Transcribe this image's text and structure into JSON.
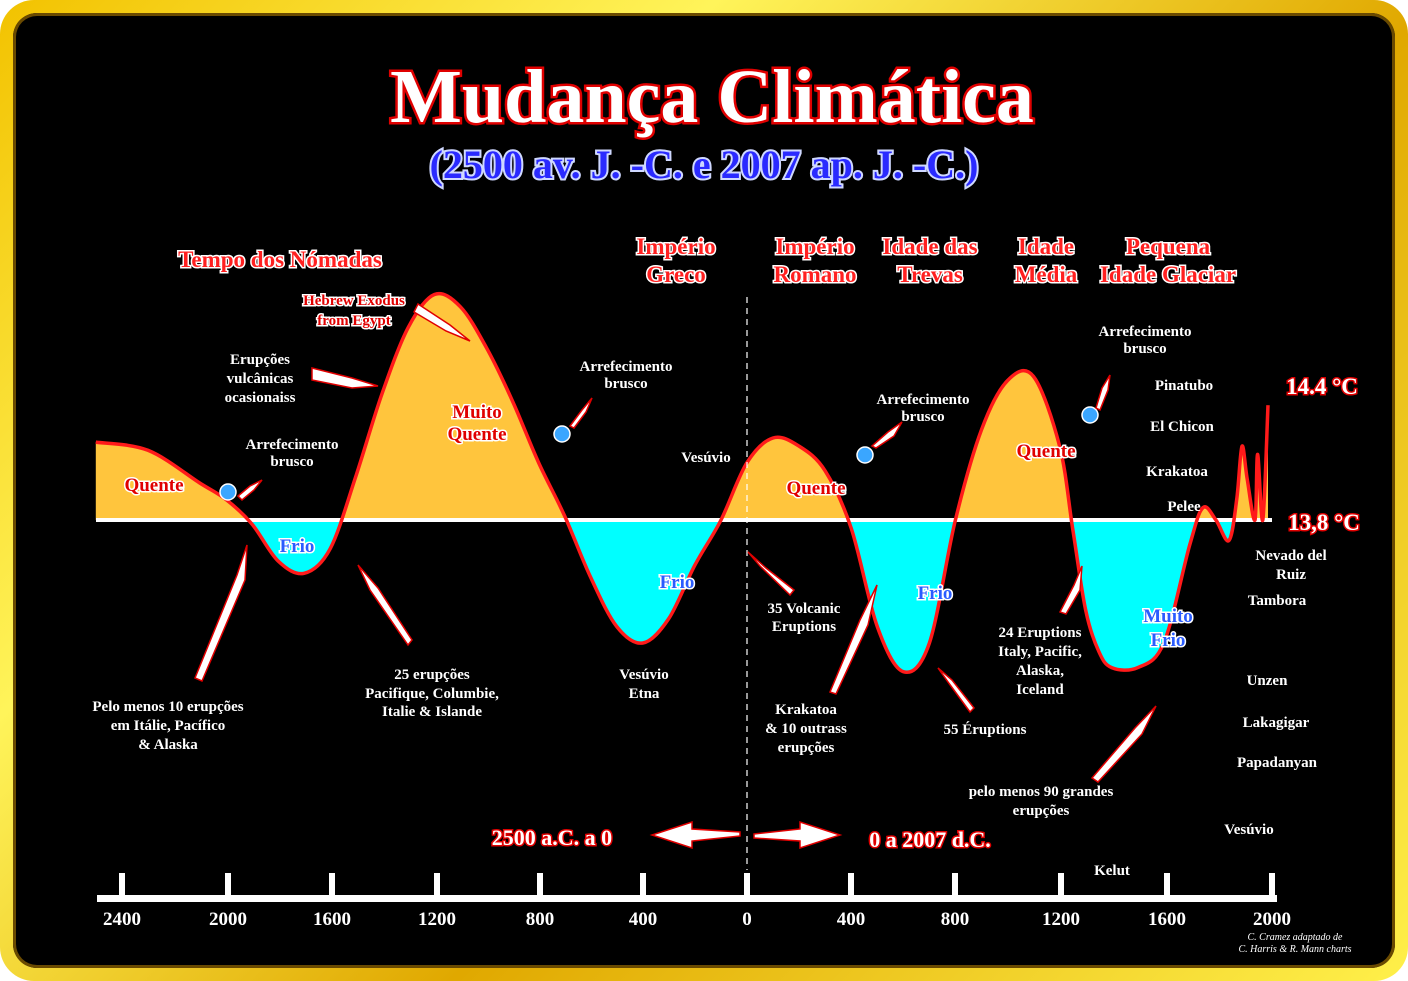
{
  "chart_data": {
    "type": "area",
    "title": "Mudança Climática",
    "subtitle": "(2500 av. J. -C. e 2007 ap. J. -C.)",
    "x_axis": {
      "ticks": [
        "2400",
        "2000",
        "1600",
        "1200",
        "800",
        "400",
        "0",
        "400",
        "800",
        "1200",
        "1600",
        "2000"
      ],
      "range_left_label": "2500 a.C. a  0",
      "range_right_label": "0  a  2007 d.C."
    },
    "y_axis": {
      "reference_labels": [
        "14.4 °C",
        "13,8 °C"
      ]
    },
    "series": [
      {
        "x": [
          -2500,
          -2300,
          -2100,
          -2000,
          -1900,
          -1800,
          -1700,
          -1600,
          -1500,
          -1400,
          -1300,
          -1200,
          -1100,
          -1000,
          -900,
          -800,
          -700,
          -600,
          -500,
          -400,
          -300,
          -200,
          -100,
          0,
          100,
          200,
          300,
          400,
          500,
          600,
          700,
          800,
          900,
          1000,
          1100,
          1200,
          1250,
          1300,
          1350,
          1400,
          1500,
          1600,
          1700,
          1750,
          1800,
          1850,
          1880,
          1900,
          1920,
          1950,
          1960,
          1980,
          2000
        ],
        "y": [
          0.19,
          0.17,
          0.09,
          0.05,
          -0.01,
          -0.1,
          -0.13,
          -0.07,
          0.11,
          0.31,
          0.47,
          0.55,
          0.52,
          0.42,
          0.29,
          0.14,
          0.01,
          -0.14,
          -0.26,
          -0.3,
          -0.24,
          -0.11,
          0.0,
          0.14,
          0.2,
          0.18,
          0.12,
          -0.02,
          -0.26,
          -0.37,
          -0.3,
          0.0,
          0.22,
          0.34,
          0.35,
          0.18,
          -0.02,
          -0.22,
          -0.32,
          -0.36,
          -0.36,
          -0.3,
          -0.06,
          0.03,
          0.0,
          -0.05,
          0.05,
          0.18,
          0.1,
          0.0,
          0.16,
          0.0,
          0.28
        ]
      }
    ],
    "eras": [
      "Tempo dos Nómadas",
      "Império Greco",
      "Império Romano",
      "Idade das Trevas",
      "Idade Média",
      "Pequena Idade Glaciar"
    ],
    "regions": {
      "quente": "Quente",
      "muito_quente": "Muito Quente",
      "frio": "Frio",
      "muito_frio": "Muito Frio"
    },
    "annotations": {
      "hebrew_exodus": "Hebrew Exodus from Egypt",
      "arrefecimento": "Arrefecimento brusco",
      "erupcoes_ocasionais": "Erupções vulcânicas ocasionaiss",
      "pelo_menos_10": "Pelo menos 10 erupções em Itálie, Pacífico & Alaska",
      "vinte_cinco": "25 erupções Pacifique, Columbie, Italie & Islande",
      "vesuvio_etna": "Vesúvio Etna",
      "vesuvio": "Vesúvio",
      "trinta_cinco": "35 Volcanic Eruptions",
      "krakatoa_10": "Krakatoa & 10 outrass erupções",
      "cinquenta_cinco": "55 Éruptions",
      "vinte_quatro": "24 Eruptions Italy, Pacific, Alaska, Iceland",
      "noventa": "pelo menos 90 grandes erupções"
    },
    "volcanoes": [
      "Pinatubo",
      "El Chicon",
      "Krakatoa",
      "Pelee",
      "Nevado del Ruiz",
      "Tambora",
      "Unzen",
      "Lakagigar",
      "Papadanyan",
      "Vesúvio",
      "Kelut"
    ],
    "credit": [
      "C. Cramez adaptado de",
      "C. Harris & R. Mann charts"
    ],
    "colors": {
      "warm": "#ffc53d",
      "cold": "#00ffff",
      "curve": "#ff1a1a",
      "background": "#000000",
      "frame": "#f2d000"
    }
  }
}
